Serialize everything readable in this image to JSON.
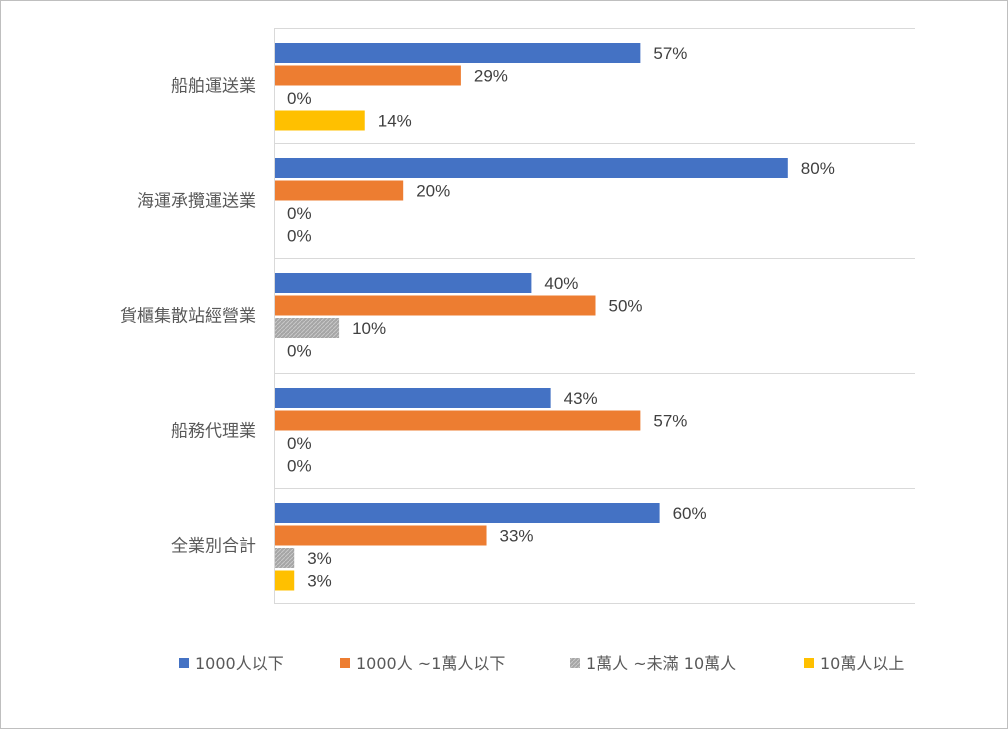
{
  "chart_data": {
    "type": "bar",
    "orientation": "horizontal",
    "categories": [
      "船舶運送業",
      "海運承攬運送業",
      "貨櫃集散站經營業",
      "船務代理業",
      "全業別合計"
    ],
    "series": [
      {
        "name": "1000人以下",
        "values": [
          57,
          80,
          40,
          43,
          60
        ],
        "color": "#4472c4"
      },
      {
        "name": "1000人 ~1萬人以下",
        "values": [
          29,
          20,
          50,
          57,
          33
        ],
        "color": "#ed7d31"
      },
      {
        "name": "1萬人 ~未滿 10萬人",
        "values": [
          0,
          0,
          10,
          0,
          3
        ],
        "color": "#a5a5a5"
      },
      {
        "name": "10萬人以上",
        "values": [
          14,
          0,
          0,
          0,
          3
        ],
        "color": "#ffc000"
      }
    ],
    "value_suffix": "%",
    "xlim": [
      0,
      100
    ],
    "grid": "category separators",
    "legend_position": "bottom",
    "title": "",
    "xlabel": "",
    "ylabel": ""
  }
}
